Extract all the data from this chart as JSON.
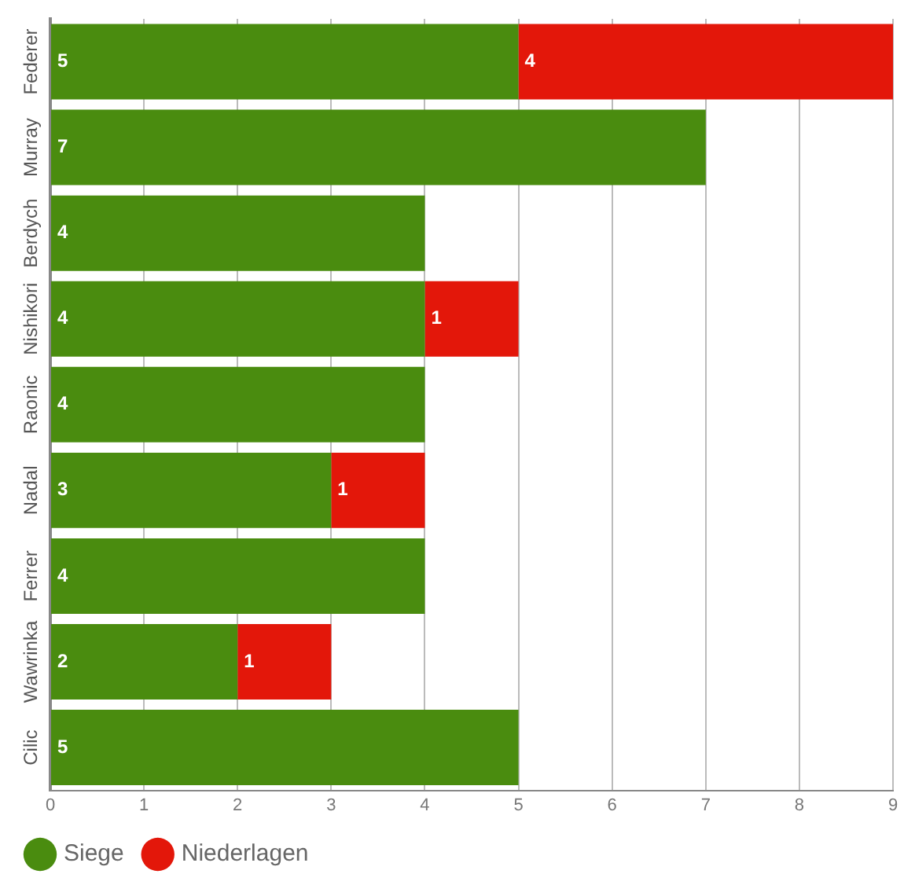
{
  "chart_data": {
    "type": "bar",
    "orientation": "horizontal",
    "stacked": true,
    "categories": [
      "Federer",
      "Murray",
      "Berdych",
      "Nishikori",
      "Raonic",
      "Nadal",
      "Ferrer",
      "Wawrinka",
      "Cilic"
    ],
    "series": [
      {
        "name": "Siege",
        "color": "#4a8c0f",
        "values": [
          5,
          7,
          4,
          4,
          4,
          3,
          4,
          2,
          5
        ]
      },
      {
        "name": "Niederlagen",
        "color": "#e3170a",
        "values": [
          4,
          null,
          null,
          1,
          null,
          1,
          null,
          1,
          null
        ]
      }
    ],
    "xlim": [
      0,
      9
    ],
    "xticks": [
      0,
      1,
      2,
      3,
      4,
      5,
      6,
      7,
      8,
      9
    ],
    "grid": "x",
    "legend": "bottom left",
    "data_labels": true
  }
}
